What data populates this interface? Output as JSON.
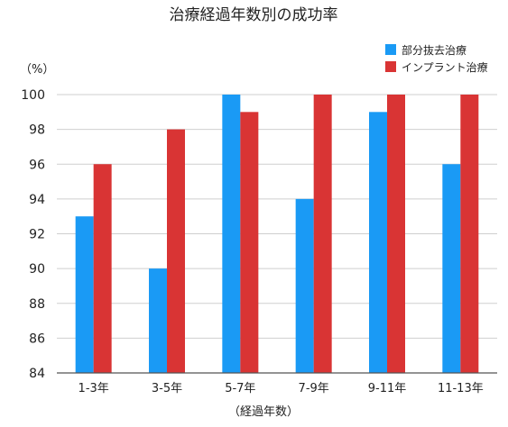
{
  "chart_data": {
    "type": "bar",
    "title": "治療経過年数別の成功率",
    "ylabel": "（%）",
    "xlabel": "（経過年数）",
    "categories": [
      "1-3年",
      "3-5年",
      "5-7年",
      "7-9年",
      "9-11年",
      "11-13年"
    ],
    "series": [
      {
        "name": "部分抜去治療",
        "color": "#1a9af5",
        "values": [
          93,
          90,
          100,
          94,
          99,
          96
        ]
      },
      {
        "name": "インプラント治療",
        "color": "#d93434",
        "values": [
          96,
          98,
          99,
          100,
          100,
          100
        ]
      }
    ],
    "ylim": [
      84,
      100
    ],
    "yticks": [
      84,
      86,
      88,
      90,
      92,
      94,
      96,
      98,
      100
    ],
    "grid": true,
    "legend_position": "top-right"
  }
}
